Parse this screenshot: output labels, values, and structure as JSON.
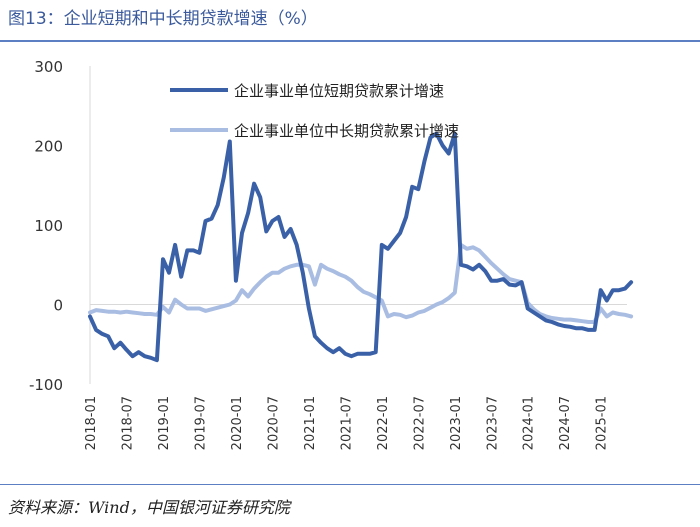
{
  "title": "图13：企业短期和中长期贷款增速（%）",
  "source": "资料来源：Wind，中国银河证券研究院",
  "colors": {
    "short": "#3a61a8",
    "long": "#a9bde3",
    "title": "#3a5a9c",
    "rule": "#5b7fc2"
  },
  "chart_data": {
    "type": "line",
    "title": "",
    "xlabel": "",
    "ylabel": "",
    "ylim": [
      -100,
      300
    ],
    "yticks": [
      "300",
      "200",
      "100",
      "0",
      "-100"
    ],
    "xticks": [
      "2018-01",
      "2018-07",
      "2019-01",
      "2019-07",
      "2020-01",
      "2020-07",
      "2021-01",
      "2021-07",
      "2022-01",
      "2022-07",
      "2023-01",
      "2023-07",
      "2024-01",
      "2024-07",
      "2025-01"
    ],
    "x": [
      "2018-01",
      "2018-02",
      "2018-03",
      "2018-04",
      "2018-05",
      "2018-06",
      "2018-07",
      "2018-08",
      "2018-09",
      "2018-10",
      "2018-11",
      "2018-12",
      "2019-01",
      "2019-02",
      "2019-03",
      "2019-04",
      "2019-05",
      "2019-06",
      "2019-07",
      "2019-08",
      "2019-09",
      "2019-10",
      "2019-11",
      "2019-12",
      "2020-01",
      "2020-02",
      "2020-03",
      "2020-04",
      "2020-05",
      "2020-06",
      "2020-07",
      "2020-08",
      "2020-09",
      "2020-10",
      "2020-11",
      "2020-12",
      "2021-01",
      "2021-02",
      "2021-03",
      "2021-04",
      "2021-05",
      "2021-06",
      "2021-07",
      "2021-08",
      "2021-09",
      "2021-10",
      "2021-11",
      "2021-12",
      "2022-01",
      "2022-02",
      "2022-03",
      "2022-04",
      "2022-05",
      "2022-06",
      "2022-07",
      "2022-08",
      "2022-09",
      "2022-10",
      "2022-11",
      "2022-12",
      "2023-01",
      "2023-02",
      "2023-03",
      "2023-04",
      "2023-05",
      "2023-06",
      "2023-07",
      "2023-08",
      "2023-09",
      "2023-10",
      "2023-11",
      "2023-12",
      "2024-01",
      "2024-02",
      "2024-03",
      "2024-04",
      "2024-05",
      "2024-06",
      "2024-07",
      "2024-08",
      "2024-09",
      "2024-10",
      "2024-11",
      "2024-12",
      "2025-01",
      "2025-02",
      "2025-03",
      "2025-04",
      "2025-05",
      "2025-06"
    ],
    "series": [
      {
        "name": "企业事业单位短期贷款累计增速",
        "values": [
          -15,
          -32,
          -37,
          -40,
          -55,
          -48,
          -57,
          -65,
          -60,
          -65,
          -67,
          -70,
          57,
          40,
          75,
          35,
          68,
          68,
          65,
          105,
          108,
          125,
          160,
          205,
          30,
          90,
          115,
          152,
          135,
          92,
          105,
          110,
          85,
          95,
          75,
          40,
          -5,
          -40,
          -48,
          -55,
          -60,
          -55,
          -62,
          -65,
          -62,
          -62,
          -62,
          -60,
          75,
          70,
          80,
          90,
          110,
          148,
          145,
          180,
          210,
          215,
          200,
          190,
          215,
          50,
          48,
          44,
          50,
          42,
          30,
          30,
          32,
          25,
          24,
          28,
          -5,
          -10,
          -15,
          -20,
          -22,
          -25,
          -27,
          -28,
          -30,
          -30,
          -32,
          -32,
          18,
          5,
          18,
          18,
          20,
          28
        ]
      },
      {
        "name": "企业事业单位中长期贷款累计增速",
        "values": [
          -10,
          -7,
          -8,
          -9,
          -9,
          -10,
          -9,
          -10,
          -11,
          -12,
          -12,
          -13,
          -3,
          -10,
          6,
          0,
          -5,
          -5,
          -5,
          -8,
          -6,
          -4,
          -2,
          0,
          5,
          18,
          10,
          20,
          28,
          35,
          40,
          40,
          45,
          48,
          50,
          50,
          48,
          25,
          50,
          45,
          42,
          38,
          35,
          30,
          22,
          16,
          13,
          9,
          5,
          -15,
          -12,
          -13,
          -16,
          -14,
          -10,
          -8,
          -4,
          0,
          3,
          8,
          15,
          75,
          70,
          72,
          68,
          60,
          52,
          45,
          38,
          32,
          30,
          28,
          2,
          -6,
          -12,
          -15,
          -17,
          -18,
          -19,
          -19,
          -20,
          -21,
          -22,
          -22,
          -5,
          -15,
          -10,
          -12,
          -13,
          -15
        ]
      }
    ],
    "legend": [
      "企业事业单位短期贷款累计增速",
      "企业事业单位中长期贷款累计增速"
    ]
  }
}
